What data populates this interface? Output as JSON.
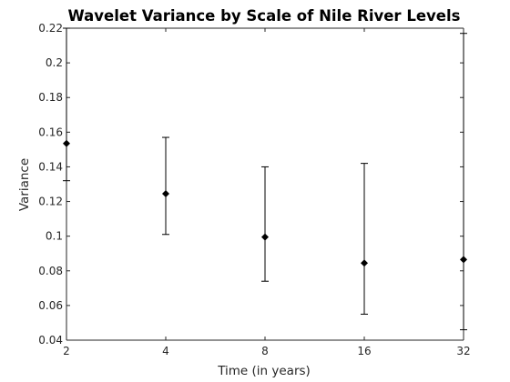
{
  "chart_data": {
    "type": "scatter",
    "title": "Wavelet Variance by Scale of Nile River Levels",
    "xlabel": "Time (in years)",
    "ylabel": "Variance",
    "x_scale": "log2",
    "xlim": [
      2,
      32
    ],
    "ylim": [
      0.04,
      0.22
    ],
    "x_ticks": [
      2,
      4,
      8,
      16,
      32
    ],
    "x_tick_labels": [
      "2",
      "4",
      "8",
      "16",
      "32"
    ],
    "y_ticks": [
      0.04,
      0.06,
      0.08,
      0.1,
      0.12,
      0.14,
      0.16,
      0.18,
      0.2,
      0.22
    ],
    "y_tick_labels": [
      "0.04",
      "0.06",
      "0.08",
      "0.1",
      "0.12",
      "0.14",
      "0.16",
      "0.18",
      "0.2",
      "0.22"
    ],
    "grid": false,
    "marker": "diamond",
    "marker_color": "#000000",
    "points": [
      {
        "x": 2,
        "y": 0.1535,
        "lower": 0.132,
        "upper": 0.22
      },
      {
        "x": 4,
        "y": 0.1245,
        "lower": 0.101,
        "upper": 0.157
      },
      {
        "x": 8,
        "y": 0.0995,
        "lower": 0.074,
        "upper": 0.14
      },
      {
        "x": 16,
        "y": 0.0845,
        "lower": 0.055,
        "upper": 0.142
      },
      {
        "x": 32,
        "y": 0.0865,
        "lower": 0.046,
        "upper": 0.217
      }
    ]
  }
}
